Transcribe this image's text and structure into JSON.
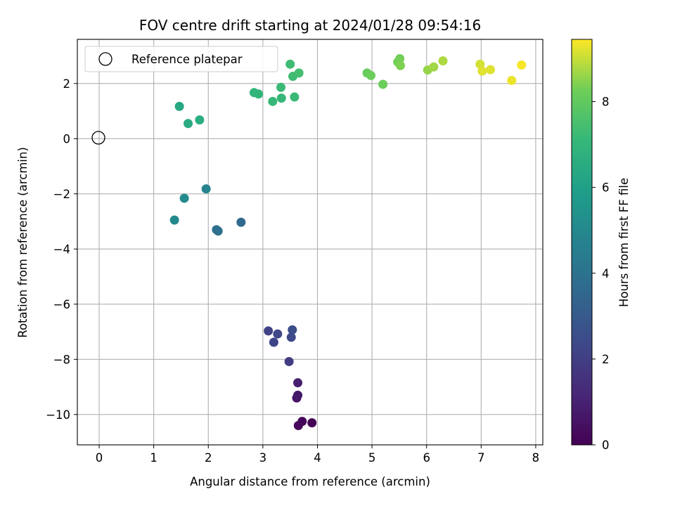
{
  "chart_data": {
    "type": "scatter",
    "title": "FOV centre drift starting at 2024/01/28 09:54:16",
    "xlabel": "Angular distance from reference (arcmin)",
    "ylabel": "Rotation from reference (arcmin)",
    "xlim": [
      -0.4,
      8.13
    ],
    "ylim": [
      -11.1,
      3.6
    ],
    "xticks": [
      0,
      1,
      2,
      3,
      4,
      5,
      6,
      7,
      8
    ],
    "yticks": [
      2,
      0,
      -2,
      -4,
      -6,
      -8,
      -10
    ],
    "xtick_labels": [
      "0",
      "1",
      "2",
      "3",
      "4",
      "5",
      "6",
      "7",
      "8"
    ],
    "ytick_labels": [
      "2",
      "0",
      "−2",
      "−4",
      "−6",
      "−8",
      "−10"
    ],
    "grid": true,
    "legend": {
      "position": "top-left",
      "entries": [
        {
          "label": "Reference platepar",
          "marker": "open-circle"
        }
      ]
    },
    "reference_point": {
      "x": 0,
      "y": 0
    },
    "colorbar": {
      "label": "Hours from first FF file",
      "colormap": "viridis",
      "range": [
        0,
        9.45
      ],
      "ticks": [
        0,
        2,
        4,
        6,
        8
      ],
      "tick_labels": [
        "0",
        "2",
        "4",
        "6",
        "8"
      ]
    },
    "points": [
      {
        "x": 3.9,
        "y": -10.3,
        "c": 0.0
      },
      {
        "x": 3.72,
        "y": -10.25,
        "c": 0.1
      },
      {
        "x": 3.65,
        "y": -10.4,
        "c": 0.2
      },
      {
        "x": 3.62,
        "y": -9.4,
        "c": 0.6
      },
      {
        "x": 3.64,
        "y": -9.3,
        "c": 0.7
      },
      {
        "x": 3.64,
        "y": -8.85,
        "c": 0.9
      },
      {
        "x": 3.48,
        "y": -8.08,
        "c": 1.9
      },
      {
        "x": 3.1,
        "y": -6.97,
        "c": 2.1
      },
      {
        "x": 3.2,
        "y": -7.38,
        "c": 2.2
      },
      {
        "x": 3.27,
        "y": -7.08,
        "c": 2.3
      },
      {
        "x": 3.52,
        "y": -7.2,
        "c": 2.4
      },
      {
        "x": 3.54,
        "y": -6.93,
        "c": 2.5
      },
      {
        "x": 2.6,
        "y": -3.03,
        "c": 3.6
      },
      {
        "x": 2.15,
        "y": -3.3,
        "c": 3.8
      },
      {
        "x": 2.18,
        "y": -3.35,
        "c": 3.9
      },
      {
        "x": 1.96,
        "y": -1.82,
        "c": 4.8
      },
      {
        "x": 1.38,
        "y": -2.95,
        "c": 5.0
      },
      {
        "x": 1.56,
        "y": -2.16,
        "c": 5.1
      },
      {
        "x": 1.47,
        "y": 1.17,
        "c": 6.4
      },
      {
        "x": 1.63,
        "y": 0.55,
        "c": 6.5
      },
      {
        "x": 1.84,
        "y": 0.68,
        "c": 6.6
      },
      {
        "x": 2.84,
        "y": 1.67,
        "c": 7.0
      },
      {
        "x": 2.92,
        "y": 1.62,
        "c": 7.0
      },
      {
        "x": 3.18,
        "y": 1.35,
        "c": 7.1
      },
      {
        "x": 3.34,
        "y": 1.47,
        "c": 7.1
      },
      {
        "x": 3.33,
        "y": 1.86,
        "c": 7.2
      },
      {
        "x": 3.58,
        "y": 1.51,
        "c": 7.2
      },
      {
        "x": 3.5,
        "y": 2.7,
        "c": 7.3
      },
      {
        "x": 3.55,
        "y": 2.26,
        "c": 7.3
      },
      {
        "x": 3.66,
        "y": 2.38,
        "c": 7.4
      },
      {
        "x": 4.91,
        "y": 2.38,
        "c": 8.1
      },
      {
        "x": 4.98,
        "y": 2.29,
        "c": 8.2
      },
      {
        "x": 5.2,
        "y": 1.97,
        "c": 8.2
      },
      {
        "x": 5.47,
        "y": 2.78,
        "c": 8.3
      },
      {
        "x": 5.51,
        "y": 2.9,
        "c": 8.3
      },
      {
        "x": 5.52,
        "y": 2.65,
        "c": 8.4
      },
      {
        "x": 6.02,
        "y": 2.49,
        "c": 8.6
      },
      {
        "x": 6.13,
        "y": 2.6,
        "c": 8.7
      },
      {
        "x": 6.3,
        "y": 2.82,
        "c": 8.8
      },
      {
        "x": 6.98,
        "y": 2.7,
        "c": 9.1
      },
      {
        "x": 7.02,
        "y": 2.45,
        "c": 9.2
      },
      {
        "x": 7.17,
        "y": 2.5,
        "c": 9.2
      },
      {
        "x": 7.56,
        "y": 2.11,
        "c": 9.3
      },
      {
        "x": 7.74,
        "y": 2.67,
        "c": 9.4
      }
    ]
  }
}
